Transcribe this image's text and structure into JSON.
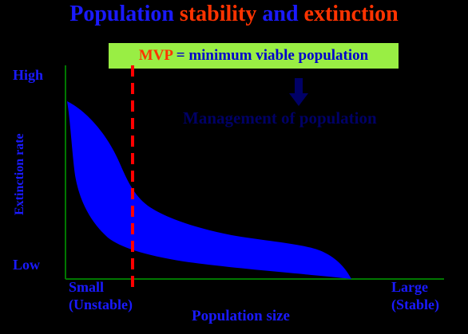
{
  "title": {
    "part1": "Population",
    "part2": "stability",
    "part3": "and",
    "part4": "extinction",
    "colors": {
      "blue": "#1a1aff",
      "orange": "#ff3300"
    }
  },
  "mvp_box": {
    "abbr": "MVP",
    "equals": "=",
    "definition": "minimum viable population",
    "background": "#99ee44"
  },
  "management_label": "Management of population",
  "arrow_icon": "arrow-down-icon",
  "y_axis": {
    "label": "Extinction rate",
    "high": "High",
    "low": "Low"
  },
  "x_axis": {
    "label": "Population size",
    "small": "Small",
    "small_sub": "(Unstable)",
    "large": "Large",
    "large_sub": "(Stable)"
  },
  "colors": {
    "axis": "#007700",
    "band": "#0000ff",
    "mvp_line": "#ff0000"
  }
}
